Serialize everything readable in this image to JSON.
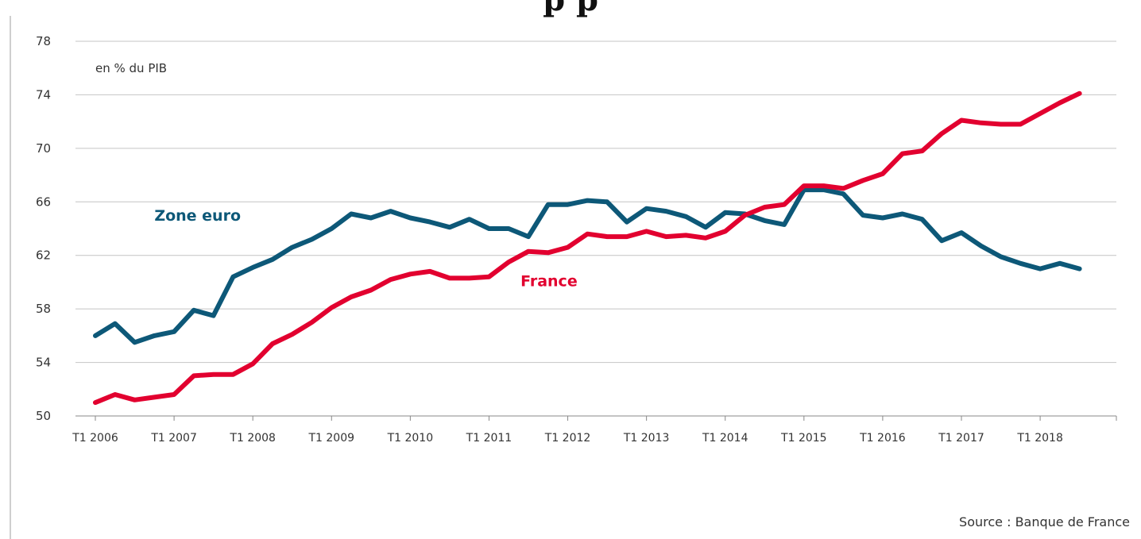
{
  "title": "p p",
  "source": "Source : Banque de France",
  "chart_data": {
    "type": "line",
    "unit_label": "en % du PIB",
    "ylim": [
      50,
      78
    ],
    "y_ticks": [
      50,
      54,
      58,
      62,
      66,
      70,
      74,
      78
    ],
    "x_tick_labels": [
      "T1 2006",
      "T1 2007",
      "T1 2008",
      "T1 2009",
      "T1 2010",
      "T1 2011",
      "T1 2012",
      "T1 2013",
      "T1 2014",
      "T1 2015",
      "T1 2016",
      "T1 2017",
      "T1 2018"
    ],
    "grid": true,
    "series": [
      {
        "name": "Zone euro",
        "color": "#0d5878",
        "label_at": {
          "x": 2006.75,
          "y": 64.6
        },
        "values": [
          56.0,
          56.9,
          55.5,
          56.0,
          56.3,
          57.9,
          57.5,
          60.4,
          61.1,
          61.7,
          62.6,
          63.2,
          64.0,
          65.1,
          64.8,
          65.3,
          64.8,
          64.5,
          64.1,
          64.7,
          64.0,
          64.0,
          63.4,
          65.8,
          65.8,
          66.1,
          66.0,
          64.5,
          65.5,
          65.3,
          64.9,
          64.1,
          65.2,
          65.1,
          64.6,
          64.3,
          66.9,
          66.9,
          66.6,
          65.0,
          64.8,
          65.1,
          64.7,
          63.1,
          63.7,
          62.7,
          61.9,
          61.4,
          61.0,
          61.4,
          61.0
        ]
      },
      {
        "name": "France",
        "color": "#e2002f",
        "label_at": {
          "x": 2011.4,
          "y": 59.7
        },
        "values": [
          51.0,
          51.6,
          51.2,
          51.4,
          51.6,
          53.0,
          53.1,
          53.1,
          53.9,
          55.4,
          56.1,
          57.0,
          58.1,
          58.9,
          59.4,
          60.2,
          60.6,
          60.8,
          60.3,
          60.3,
          60.4,
          61.5,
          62.3,
          62.2,
          62.6,
          63.6,
          63.4,
          63.4,
          63.8,
          63.4,
          63.5,
          63.3,
          63.8,
          65.0,
          65.6,
          65.8,
          67.2,
          67.2,
          67.0,
          67.6,
          68.1,
          69.6,
          69.8,
          71.1,
          72.1,
          71.9,
          71.8,
          71.8,
          72.6,
          73.4,
          74.1
        ]
      }
    ]
  }
}
